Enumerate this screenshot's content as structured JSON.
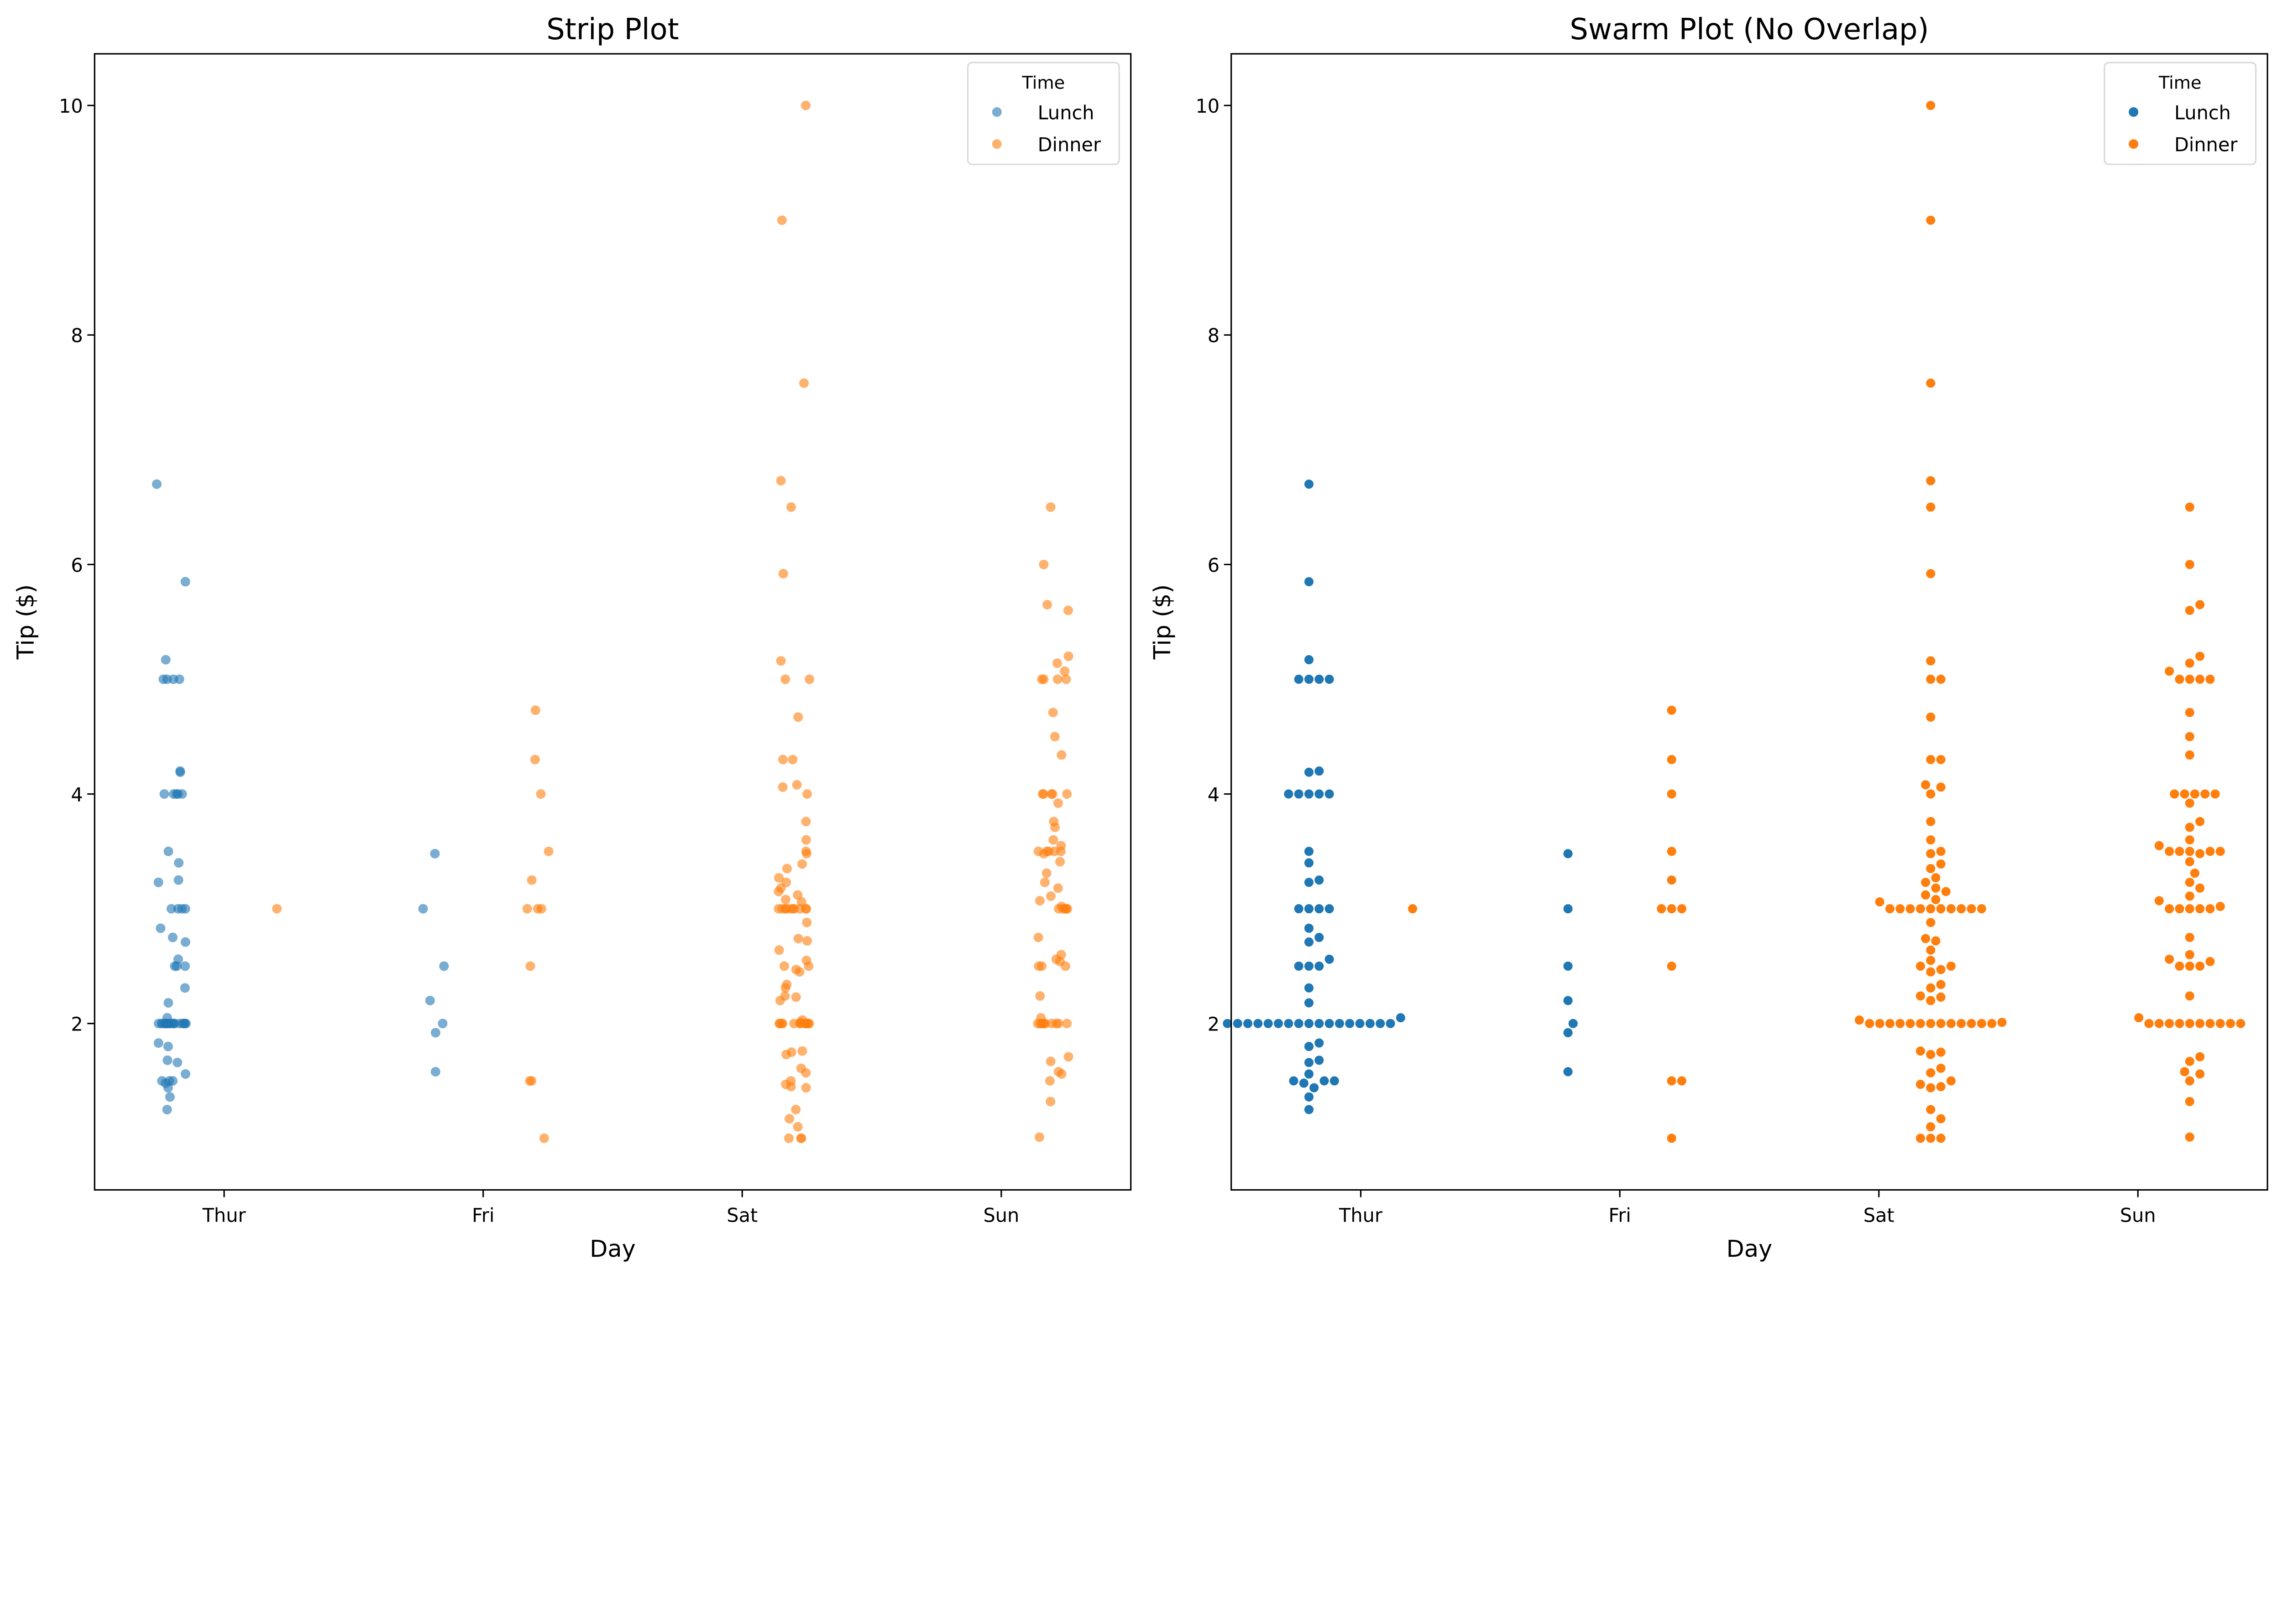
{
  "colors": {
    "Lunch": "#1f77b4",
    "Dinner": "#ff7f0e"
  },
  "legend": {
    "title": "Time",
    "entries": [
      "Lunch",
      "Dinner"
    ],
    "placement": "top-right"
  },
  "tips": {
    "Thur": {
      "Lunch": [
        6.7,
        5.85,
        5.17,
        5,
        5,
        5,
        5,
        4.2,
        4.19,
        4,
        4,
        4,
        4,
        4,
        3.5,
        3.4,
        3.25,
        3.23,
        3,
        3,
        3,
        3,
        2.83,
        2.75,
        2.71,
        2.56,
        2.5,
        2.5,
        2.5,
        2.31,
        2.18,
        2.05,
        2,
        2,
        2,
        2,
        2,
        2,
        2,
        2,
        2,
        2,
        2,
        2,
        2,
        2,
        2,
        2,
        2,
        1.83,
        1.8,
        1.68,
        1.66,
        1.56,
        1.5,
        1.5,
        1.5,
        1.48,
        1.44,
        1.36,
        1.25
      ],
      "Dinner": [
        3
      ]
    },
    "Fri": {
      "Lunch": [
        3.48,
        3,
        2.5,
        2.2,
        2,
        1.92,
        1.58
      ],
      "Dinner": [
        4.73,
        4.3,
        4,
        3.5,
        3.25,
        3,
        3,
        3,
        2.5,
        1.5,
        1.5,
        1
      ]
    },
    "Sat": {
      "Lunch": [],
      "Dinner": [
        10,
        9,
        7.58,
        6.73,
        6.5,
        5.92,
        5.16,
        5,
        5,
        4.67,
        4.3,
        4.3,
        4.08,
        4.06,
        4,
        3.76,
        3.6,
        3.5,
        3.48,
        3.39,
        3.35,
        3.27,
        3.23,
        3.18,
        3.15,
        3.12,
        3.08,
        3.06,
        3,
        3,
        3,
        3,
        3,
        3,
        3,
        3,
        3,
        3,
        2.88,
        2.74,
        2.72,
        2.64,
        2.55,
        2.5,
        2.5,
        2.47,
        2.45,
        2.34,
        2.31,
        2.24,
        2.23,
        2.2,
        2.03,
        2.01,
        2,
        2,
        2,
        2,
        2,
        2,
        2,
        2,
        2,
        2,
        2,
        2,
        2,
        1.76,
        1.75,
        1.73,
        1.61,
        1.57,
        1.5,
        1.47,
        1.45,
        1.44,
        1.25,
        1.17,
        1.1,
        1,
        1,
        1
      ]
    },
    "Sun": {
      "Lunch": [],
      "Dinner": [
        6.5,
        6,
        5.65,
        5.6,
        5.2,
        5.14,
        5.07,
        5,
        5,
        5,
        5,
        4.71,
        4.5,
        4.34,
        4,
        4,
        4,
        4,
        4,
        3.92,
        3.76,
        3.71,
        3.6,
        3.55,
        3.5,
        3.5,
        3.5,
        3.5,
        3.5,
        3.48,
        3.41,
        3.31,
        3.23,
        3.18,
        3.11,
        3.07,
        3.02,
        3,
        3,
        3,
        3,
        3,
        2.75,
        2.6,
        2.56,
        2.54,
        2.5,
        2.5,
        2.5,
        2.24,
        2.05,
        2,
        2,
        2,
        2,
        2,
        2,
        2,
        2,
        2,
        2,
        1.71,
        1.67,
        1.58,
        1.56,
        1.5,
        1.32,
        1.01
      ]
    }
  },
  "chart_data": [
    {
      "type": "scatter",
      "variant": "strip",
      "title": "Strip Plot",
      "xlabel": "Day",
      "ylabel": "Tip ($)",
      "categories": [
        "Thur",
        "Fri",
        "Sat",
        "Sun"
      ],
      "yticks": [
        "2",
        "4",
        "6",
        "8",
        "10"
      ],
      "ylim": [
        0.55,
        10.45
      ],
      "hue": "Time",
      "point_alpha": 0.6,
      "legend": "top-right",
      "grid": false
    },
    {
      "type": "scatter",
      "variant": "swarm",
      "title": "Swarm Plot (No Overlap)",
      "xlabel": "Day",
      "ylabel": "Tip ($)",
      "categories": [
        "Thur",
        "Fri",
        "Sat",
        "Sun"
      ],
      "yticks": [
        "2",
        "4",
        "6",
        "8",
        "10"
      ],
      "ylim": [
        0.55,
        10.45
      ],
      "hue": "Time",
      "point_alpha": 1,
      "legend": "top-right",
      "grid": false
    }
  ]
}
